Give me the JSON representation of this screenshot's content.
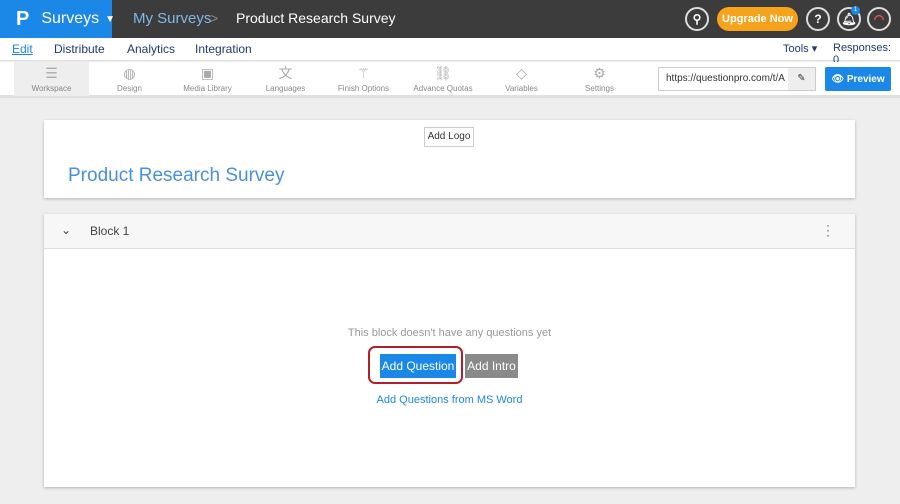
{
  "topbar": {
    "logo": "P",
    "product": "Surveys",
    "crumb1": "My Surveys",
    "sep": ">",
    "crumb2": "Product Research Survey",
    "upgrade": "Upgrade Now",
    "help": "?",
    "notif_count": "1"
  },
  "nav": {
    "items": [
      "Edit",
      "Distribute",
      "Analytics",
      "Integration"
    ],
    "tools": "Tools ▾",
    "responses": "Responses: 0"
  },
  "toolbar": {
    "items": [
      {
        "label": "Workspace",
        "icon": "list-icon"
      },
      {
        "label": "Design",
        "icon": "palette-icon"
      },
      {
        "label": "Media Library",
        "icon": "image-icon"
      },
      {
        "label": "Languages",
        "icon": "translate-icon"
      },
      {
        "label": "Finish Options",
        "icon": "wand-icon"
      },
      {
        "label": "Advance Quotas",
        "icon": "link-icon"
      },
      {
        "label": "Variables",
        "icon": "tag-icon"
      },
      {
        "label": "Settings",
        "icon": "gear-icon"
      }
    ],
    "url": "https://questionpro.com/t/A",
    "preview": "Preview"
  },
  "survey": {
    "add_logo": "Add Logo",
    "title": "Product Research Survey"
  },
  "block": {
    "title": "Block 1",
    "empty": "This block doesn't have any questions yet",
    "add_question": "Add Question",
    "add_intro": "Add Intro",
    "add_ms_word": "Add Questions from MS Word"
  },
  "colors": {
    "accent": "#1b87e6",
    "topbar": "#3c3c3c",
    "upgrade": "#f7a21b",
    "highlight": "#b0202a"
  }
}
